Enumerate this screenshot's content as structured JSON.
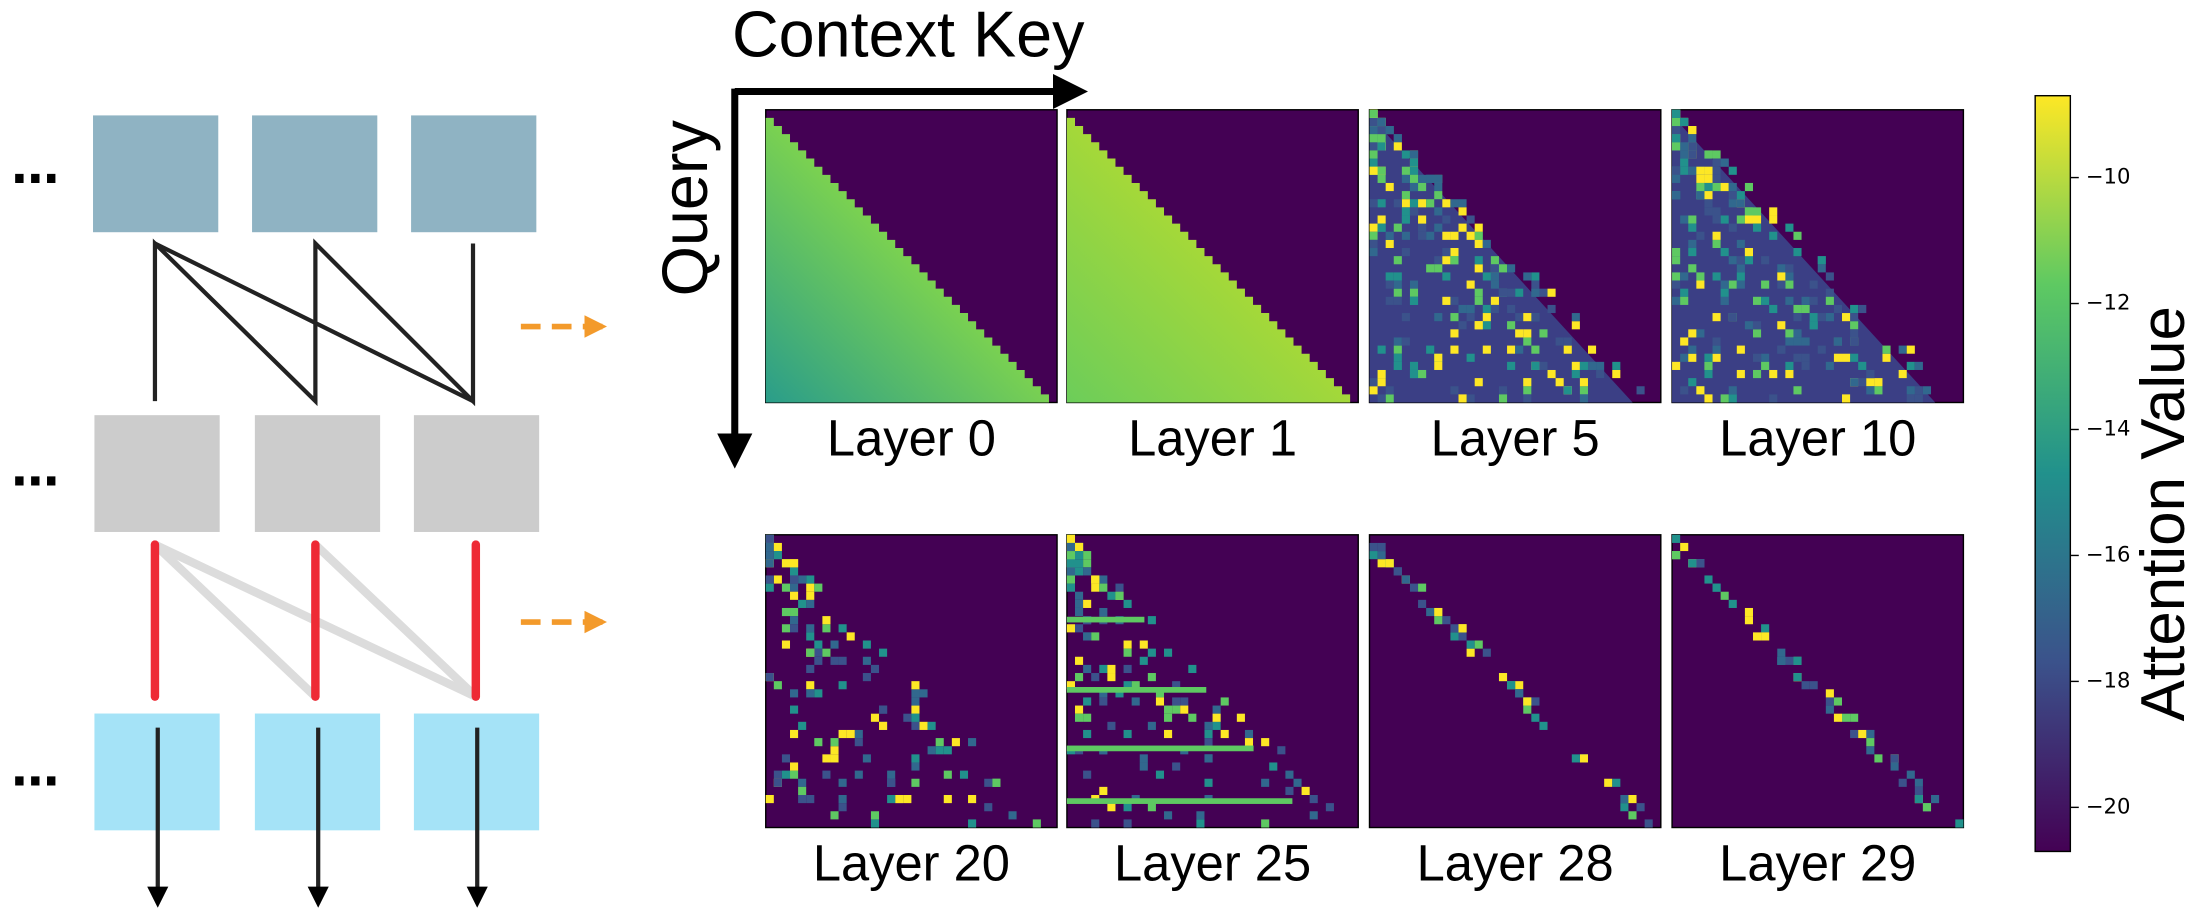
{
  "heading": {
    "x_label": "Context Key",
    "y_label": "Query"
  },
  "panels": [
    "Layer 0",
    "Layer 1",
    "Layer 5",
    "Layer 10",
    "Layer 20",
    "Layer 25",
    "Layer 28",
    "Layer 29"
  ],
  "colorbar": {
    "label": "Attention Value",
    "ylim": [
      -20.7,
      -8.7
    ],
    "yticks": [
      {
        "value": -10,
        "label": "−10"
      },
      {
        "value": -12,
        "label": "−12"
      },
      {
        "value": -14,
        "label": "−14"
      },
      {
        "value": -16,
        "label": "−16"
      },
      {
        "value": -18,
        "label": "−18"
      },
      {
        "value": -20,
        "label": "−20"
      }
    ]
  }
}
